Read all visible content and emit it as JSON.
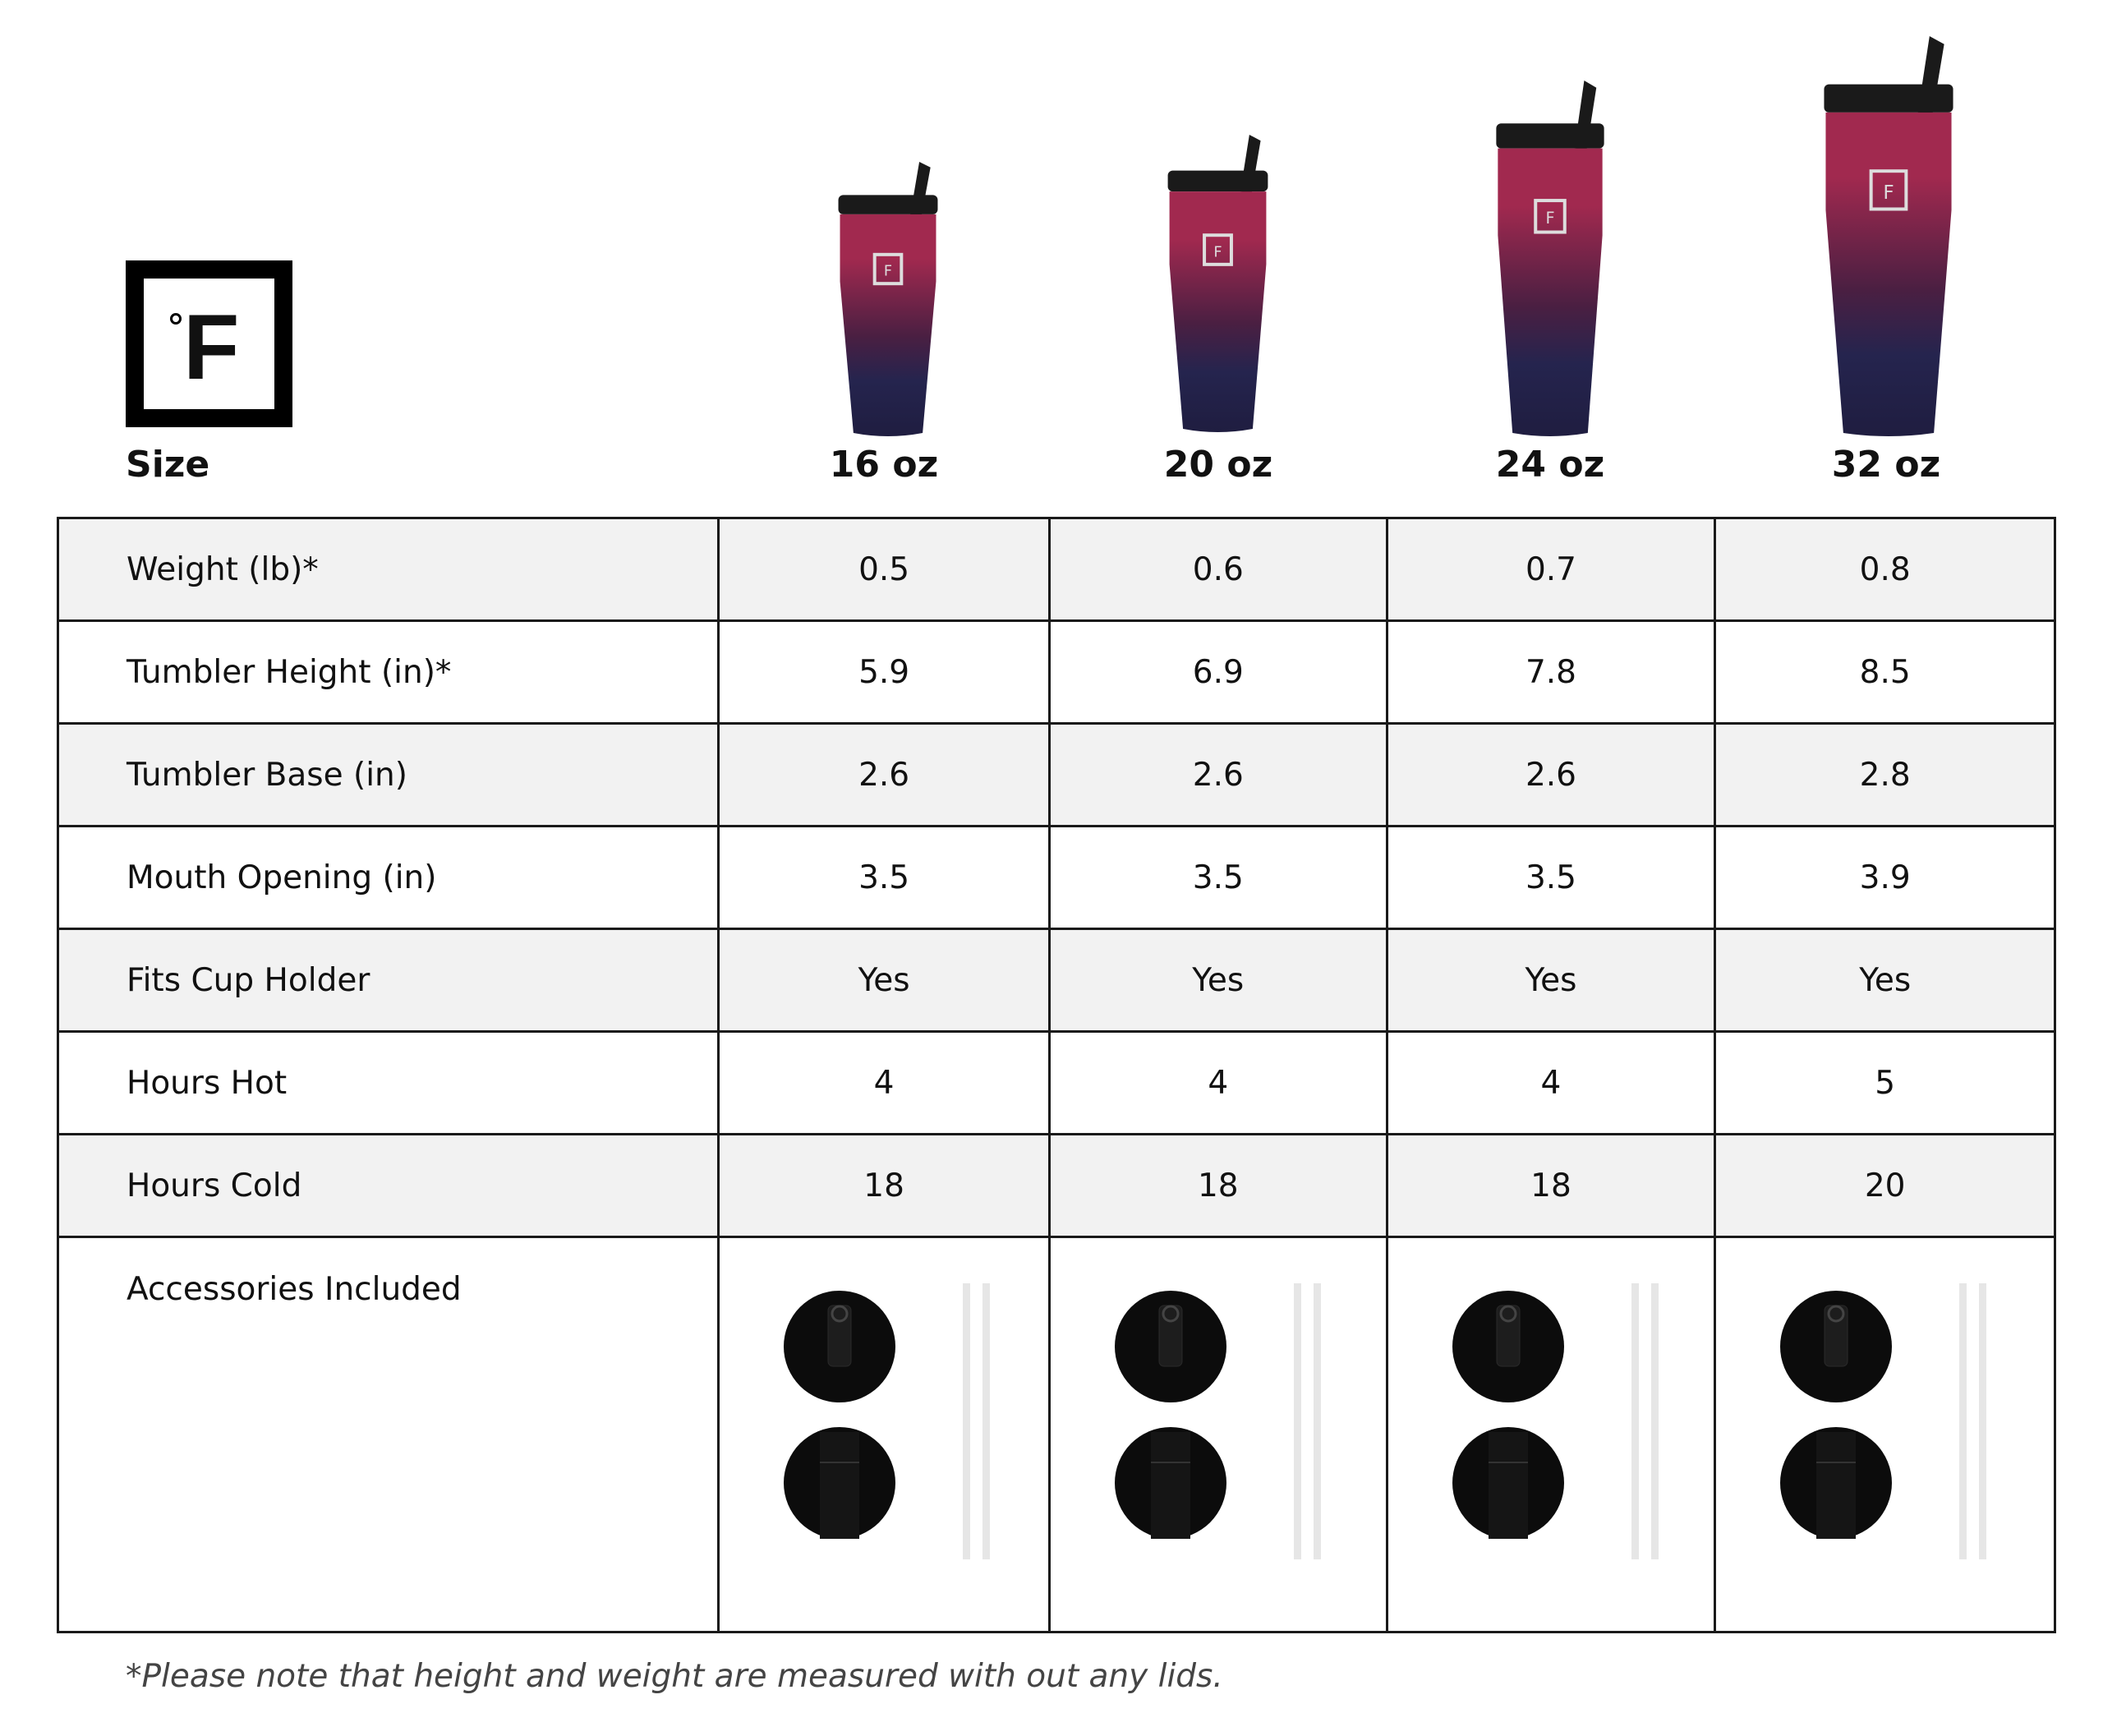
{
  "brand": {
    "logo_text": "°F",
    "icon": "fahrenheit-logo"
  },
  "header": {
    "size_label": "Size",
    "sizes": [
      "16 oz",
      "20 oz",
      "24 oz",
      "32 oz"
    ]
  },
  "tumbler_colors": {
    "top": "#a1294f",
    "bottom": "#25244e",
    "lid": "#1a1a1a"
  },
  "rows": [
    {
      "label": "Weight (lb)*",
      "values": [
        "0.5",
        "0.6",
        "0.7",
        "0.8"
      ]
    },
    {
      "label": "Tumbler Height (in)*",
      "values": [
        "5.9",
        "6.9",
        "7.8",
        "8.5"
      ]
    },
    {
      "label": "Tumbler Base (in)",
      "values": [
        "2.6",
        "2.6",
        "2.6",
        "2.8"
      ]
    },
    {
      "label": "Mouth Opening (in)",
      "values": [
        "3.5",
        "3.5",
        "3.5",
        "3.9"
      ]
    },
    {
      "label": "Fits Cup Holder",
      "values": [
        "Yes",
        "Yes",
        "Yes",
        "Yes"
      ]
    },
    {
      "label": "Hours Hot",
      "values": [
        "4",
        "4",
        "4",
        "5"
      ]
    },
    {
      "label": "Hours Cold",
      "values": [
        "18",
        "18",
        "18",
        "20"
      ]
    }
  ],
  "accessories": {
    "label": "Accessories Included",
    "items": [
      "straw-lid",
      "flip-lid",
      "straws"
    ]
  },
  "footnote": "*Please note that height and weight are measured with out any lids."
}
